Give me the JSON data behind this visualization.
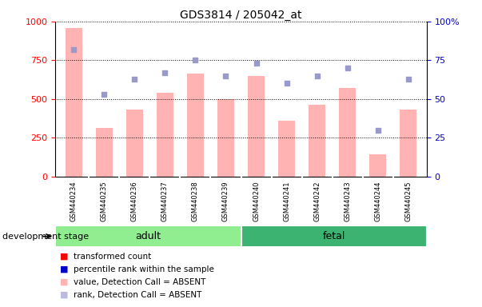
{
  "title": "GDS3814 / 205042_at",
  "samples": [
    "GSM440234",
    "GSM440235",
    "GSM440236",
    "GSM440237",
    "GSM440238",
    "GSM440239",
    "GSM440240",
    "GSM440241",
    "GSM440242",
    "GSM440243",
    "GSM440244",
    "GSM440245"
  ],
  "bar_values": [
    960,
    315,
    430,
    540,
    665,
    500,
    650,
    360,
    465,
    570,
    145,
    430
  ],
  "rank_values": [
    82,
    53,
    63,
    67,
    75,
    65,
    73,
    60,
    65,
    70,
    30,
    63
  ],
  "bar_color": "#FFB3B3",
  "rank_color": "#9999CC",
  "ylim_left": [
    0,
    1000
  ],
  "ylim_right": [
    0,
    100
  ],
  "yticks_left": [
    0,
    250,
    500,
    750,
    1000
  ],
  "yticks_right": [
    0,
    25,
    50,
    75,
    100
  ],
  "ytick_labels_left": [
    "0",
    "250",
    "500",
    "750",
    "1000"
  ],
  "ytick_labels_right": [
    "0",
    "25",
    "50",
    "75",
    "100%"
  ],
  "adult_color": "#90EE90",
  "fetal_color": "#3CB371",
  "group_label": "development stage",
  "legend_items": [
    {
      "label": "transformed count",
      "color": "#FF0000"
    },
    {
      "label": "percentile rank within the sample",
      "color": "#0000CC"
    },
    {
      "label": "value, Detection Call = ABSENT",
      "color": "#FFB3B3"
    },
    {
      "label": "rank, Detection Call = ABSENT",
      "color": "#BBBBDD"
    }
  ],
  "background_color": "#FFFFFF",
  "tick_label_color_left": "#FF0000",
  "tick_label_color_right": "#0000CC",
  "xtick_bg_color": "#C8C8C8",
  "figsize": [
    6.03,
    3.84
  ],
  "dpi": 100
}
